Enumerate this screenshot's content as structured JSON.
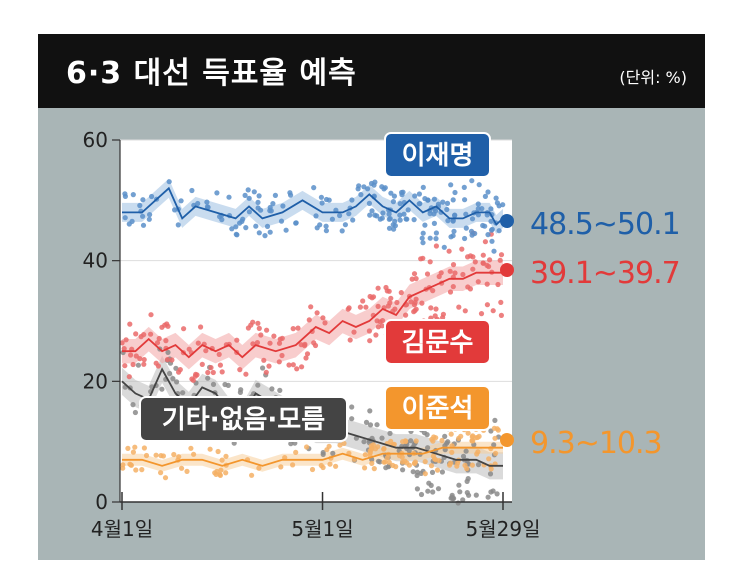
{
  "header": {
    "title": "6·3 대선 득표율 예측",
    "unit": "(단위: %)"
  },
  "colors": {
    "header_bg": "#111111",
    "card_bg": "#a9b5b6",
    "plot_bg": "#ffffff",
    "lee_jae_myung": "#1f5fa8",
    "kim_moon_soo": "#e23a3a",
    "lee_jun_seok": "#f3962d",
    "other": "#555555"
  },
  "chart_data": {
    "type": "scatter",
    "ylim": [
      0,
      60
    ],
    "y_ticks": [
      "0",
      "20",
      "40",
      "60"
    ],
    "x_ticks": [
      "4월1일",
      "5월1일",
      "5월29일"
    ],
    "grid": true,
    "series": [
      {
        "name": "이재명",
        "color": "#1f5fa8",
        "range_label": "48.5~50.1",
        "trend": [
          [
            1,
            48
          ],
          [
            4,
            48
          ],
          [
            7,
            51
          ],
          [
            8,
            52
          ],
          [
            10,
            47
          ],
          [
            12,
            49
          ],
          [
            15,
            48
          ],
          [
            18,
            47
          ],
          [
            20,
            49
          ],
          [
            22,
            47
          ],
          [
            25,
            48
          ],
          [
            28,
            50
          ],
          [
            31,
            48
          ],
          [
            34,
            48
          ],
          [
            36,
            49
          ],
          [
            38,
            51
          ],
          [
            40,
            49
          ],
          [
            42,
            48
          ],
          [
            44,
            50
          ],
          [
            46,
            48
          ],
          [
            48,
            49
          ],
          [
            50,
            47
          ],
          [
            52,
            47
          ],
          [
            54,
            48
          ],
          [
            56,
            48
          ],
          [
            57,
            46
          ],
          [
            58,
            47
          ]
        ]
      },
      {
        "name": "김문수",
        "color": "#e23a3a",
        "range_label": "39.1~39.7",
        "trend": [
          [
            1,
            25
          ],
          [
            3,
            25
          ],
          [
            5,
            27
          ],
          [
            7,
            25
          ],
          [
            9,
            26
          ],
          [
            11,
            24
          ],
          [
            13,
            26
          ],
          [
            15,
            25
          ],
          [
            17,
            26
          ],
          [
            19,
            24
          ],
          [
            21,
            26
          ],
          [
            24,
            25
          ],
          [
            27,
            26
          ],
          [
            30,
            29
          ],
          [
            32,
            28
          ],
          [
            34,
            30
          ],
          [
            36,
            29
          ],
          [
            38,
            30
          ],
          [
            40,
            32
          ],
          [
            42,
            31
          ],
          [
            44,
            34
          ],
          [
            46,
            35
          ],
          [
            48,
            36
          ],
          [
            50,
            37
          ],
          [
            52,
            37
          ],
          [
            54,
            38
          ],
          [
            56,
            38
          ],
          [
            58,
            38
          ]
        ]
      },
      {
        "name": "기타·없음·모름",
        "color": "#555555",
        "trend": [
          [
            1,
            20
          ],
          [
            3,
            18
          ],
          [
            5,
            17
          ],
          [
            7,
            22
          ],
          [
            9,
            18
          ],
          [
            11,
            16
          ],
          [
            13,
            19
          ],
          [
            15,
            18
          ],
          [
            17,
            15
          ],
          [
            19,
            14
          ],
          [
            21,
            18
          ],
          [
            24,
            16
          ],
          [
            27,
            14
          ],
          [
            30,
            12
          ],
          [
            33,
            12
          ],
          [
            36,
            11
          ],
          [
            39,
            10
          ],
          [
            42,
            9
          ],
          [
            45,
            9
          ],
          [
            48,
            8
          ],
          [
            51,
            7
          ],
          [
            54,
            7
          ],
          [
            56,
            6
          ],
          [
            58,
            6
          ]
        ]
      },
      {
        "name": "이준석",
        "color": "#f3962d",
        "range_label": "9.3~10.3",
        "trend": [
          [
            1,
            7
          ],
          [
            4,
            7
          ],
          [
            7,
            6
          ],
          [
            10,
            7
          ],
          [
            13,
            7
          ],
          [
            16,
            6
          ],
          [
            19,
            7
          ],
          [
            22,
            6
          ],
          [
            25,
            7
          ],
          [
            28,
            7
          ],
          [
            31,
            7
          ],
          [
            34,
            8
          ],
          [
            37,
            7
          ],
          [
            40,
            8
          ],
          [
            43,
            8
          ],
          [
            46,
            8
          ],
          [
            49,
            9
          ],
          [
            52,
            9
          ],
          [
            55,
            9
          ],
          [
            58,
            9
          ]
        ]
      }
    ]
  }
}
